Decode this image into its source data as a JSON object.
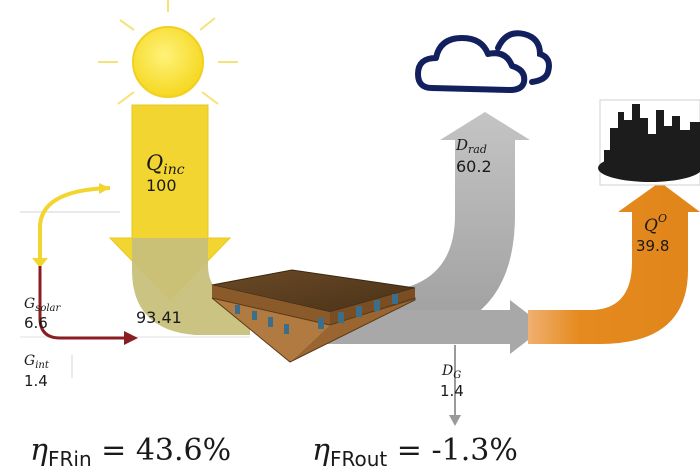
{
  "flows": {
    "q_inc": {
      "symbol": "Q",
      "subscript": "inc",
      "value": "100"
    },
    "d_rad": {
      "symbol": "D",
      "subscript": "rad",
      "value": "60.2"
    },
    "q_o": {
      "symbol": "Q",
      "superscript": "O",
      "value": "39.8"
    },
    "g_solar": {
      "symbol": "G",
      "subscript": "solar",
      "value": "6.6"
    },
    "g_int": {
      "symbol": "G",
      "subscript": "int",
      "value": "1.4"
    },
    "d_g": {
      "symbol": "D",
      "subscript": "G",
      "value": "1.4"
    },
    "stored": {
      "value": "93.41"
    }
  },
  "equations": {
    "fr_in": {
      "eta": "η",
      "sub": "FRin",
      "eq": " = ",
      "value": "43.6%"
    },
    "fr_out": {
      "eta": "η",
      "sub": "FRout",
      "eq": " = ",
      "value": "-1.3%"
    }
  },
  "colors": {
    "incoming": "#f2d531",
    "incoming_dark": "#c8c07a",
    "radiative": "#a8a8a8",
    "outgoing": "#e58a1e",
    "solar_gain": "#8b1e22",
    "sun": "#f9e24a",
    "cloud": "#12205e"
  },
  "icons": [
    "sun-icon",
    "cloud-icon",
    "city-skyline-icon",
    "building-icon"
  ]
}
